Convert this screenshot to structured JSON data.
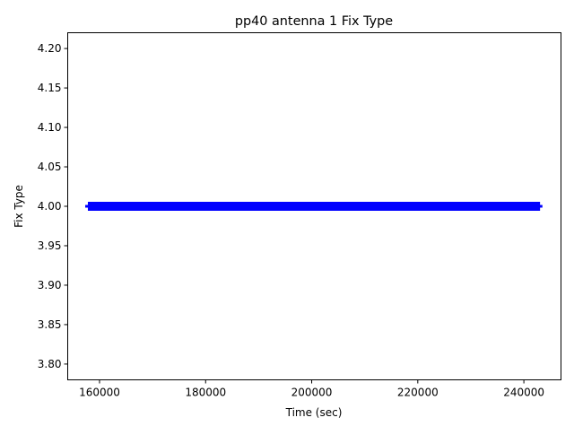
{
  "chart_data": {
    "type": "line",
    "title": "pp40 antenna 1 Fix Type",
    "xlabel": "Time (sec)",
    "ylabel": "Fix Type",
    "xlim": [
      154000,
      247000
    ],
    "ylim": [
      3.78,
      4.22
    ],
    "xticks": [
      160000,
      180000,
      200000,
      220000,
      240000
    ],
    "yticks": [
      3.8,
      3.85,
      3.9,
      3.95,
      4.0,
      4.05,
      4.1,
      4.15,
      4.2
    ],
    "grid": false,
    "series": [
      {
        "x": [
          157300,
          243500
        ],
        "y": [
          4.0,
          4.0
        ],
        "color": "#0000ff"
      }
    ],
    "dense_segment": {
      "x": [
        157800,
        243050
      ],
      "y": 4.0,
      "color": "#0000ff"
    }
  }
}
